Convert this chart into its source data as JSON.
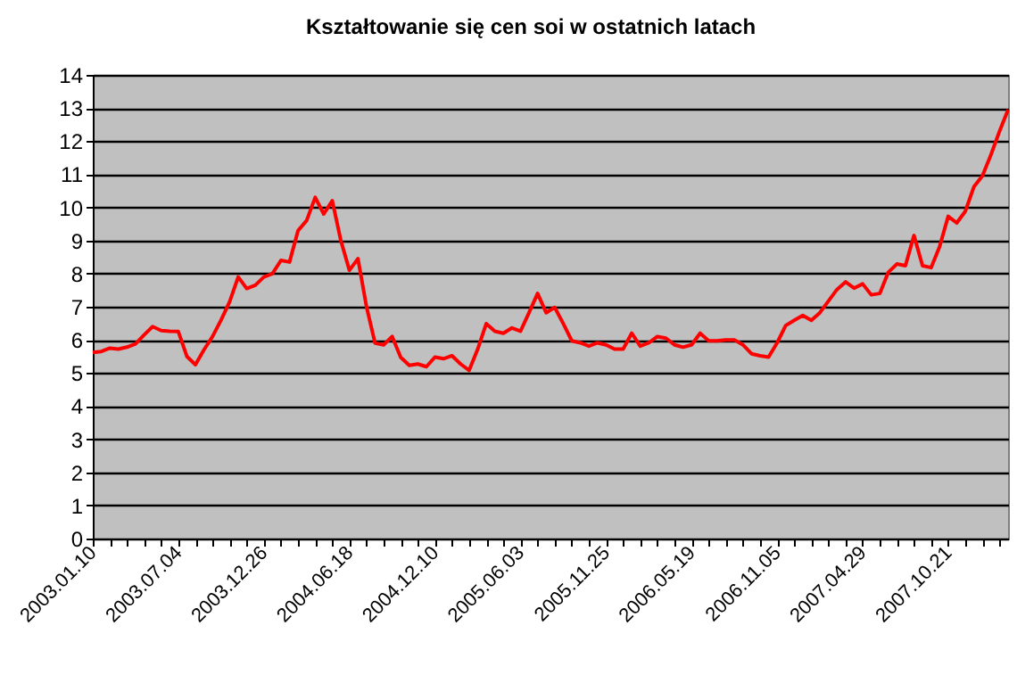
{
  "chart_data": {
    "type": "line",
    "title": "Kształtowanie się cen soi w ostatnich latach",
    "categories": [
      "2003.01.10",
      null,
      null,
      null,
      null,
      null,
      null,
      null,
      null,
      null,
      "2003.07.04",
      null,
      null,
      null,
      null,
      null,
      null,
      null,
      null,
      null,
      "2003.12.26",
      null,
      null,
      null,
      null,
      null,
      null,
      null,
      null,
      null,
      "2004.06.18",
      null,
      null,
      null,
      null,
      null,
      null,
      null,
      null,
      null,
      "2004.12.10",
      null,
      null,
      null,
      null,
      null,
      null,
      null,
      null,
      null,
      "2005.06.03",
      null,
      null,
      null,
      null,
      null,
      null,
      null,
      null,
      null,
      "2005.11.25",
      null,
      null,
      null,
      null,
      null,
      null,
      null,
      null,
      null,
      "2006.05.19",
      null,
      null,
      null,
      null,
      null,
      null,
      null,
      null,
      null,
      "2006.11.05",
      null,
      null,
      null,
      null,
      null,
      null,
      null,
      null,
      null,
      "2007.04.29",
      null,
      null,
      null,
      null,
      null,
      null,
      null,
      null,
      null,
      "2007.10.21",
      null,
      null,
      null,
      null,
      null,
      null,
      null
    ],
    "series": [
      {
        "color": "#ff0000",
        "values": [
          5.62,
          5.65,
          5.75,
          5.72,
          5.78,
          5.88,
          6.15,
          6.4,
          6.28,
          6.26,
          6.25,
          5.5,
          5.25,
          5.7,
          6.1,
          6.6,
          7.15,
          7.9,
          7.55,
          7.65,
          7.9,
          8.0,
          8.4,
          8.35,
          9.3,
          9.6,
          10.3,
          9.8,
          10.2,
          9.0,
          8.1,
          8.45,
          7.0,
          5.9,
          5.85,
          6.1,
          5.47,
          5.23,
          5.27,
          5.19,
          5.48,
          5.43,
          5.52,
          5.27,
          5.08,
          5.72,
          6.49,
          6.26,
          6.2,
          6.36,
          6.26,
          6.82,
          7.4,
          6.82,
          6.98,
          6.49,
          5.97,
          5.91,
          5.81,
          5.91,
          5.85,
          5.72,
          5.72,
          6.2,
          5.81,
          5.91,
          6.1,
          6.05,
          5.85,
          5.78,
          5.85,
          6.2,
          5.97,
          5.97,
          6.0,
          6.0,
          5.85,
          5.58,
          5.52,
          5.48,
          5.91,
          6.43,
          6.59,
          6.74,
          6.59,
          6.82,
          7.17,
          7.52,
          7.75,
          7.56,
          7.69,
          7.36,
          7.4,
          8.04,
          8.29,
          8.24,
          9.15,
          8.24,
          8.18,
          8.82,
          9.73,
          9.53,
          9.88,
          10.62,
          10.95,
          11.59,
          12.3,
          12.95
        ]
      }
    ],
    "ylim": [
      0,
      14
    ],
    "yticks": [
      0,
      1,
      2,
      3,
      4,
      5,
      6,
      7,
      8,
      9,
      10,
      11,
      12,
      13,
      14
    ],
    "grid": "y",
    "marker": "none",
    "line_style": "solid"
  }
}
